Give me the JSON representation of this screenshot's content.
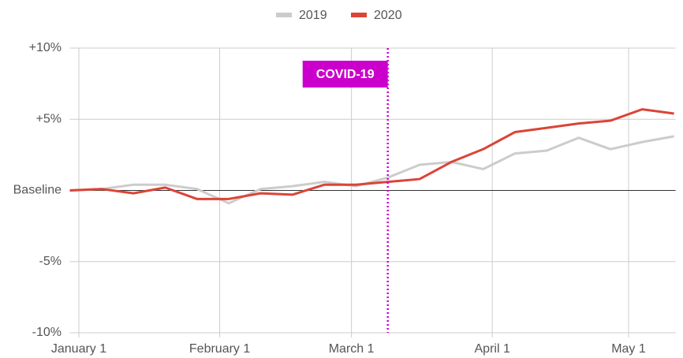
{
  "chart_data": {
    "type": "line",
    "x": [
      -2,
      5,
      12,
      19,
      26,
      33,
      40,
      47,
      54,
      61,
      68,
      75,
      82,
      89,
      96,
      103,
      110,
      117,
      124,
      131
    ],
    "series": [
      {
        "name": "2019",
        "color": "#cccccc",
        "values": [
          0,
          0.1,
          0.4,
          0.4,
          0.1,
          -0.9,
          0.1,
          0.3,
          0.6,
          0.3,
          0.9,
          1.8,
          2.0,
          1.5,
          2.6,
          2.8,
          3.7,
          2.9,
          3.4,
          3.8
        ]
      },
      {
        "name": "2020",
        "color": "#db4437",
        "values": [
          0,
          0.1,
          -0.2,
          0.2,
          -0.6,
          -0.6,
          -0.2,
          -0.3,
          0.4,
          0.4,
          0.6,
          0.8,
          2.0,
          2.9,
          4.1,
          4.4,
          4.7,
          4.9,
          5.7,
          5.4
        ]
      }
    ],
    "xlim": [
      -2,
      131
    ],
    "xticks": [
      {
        "value": 0,
        "label": "January 1"
      },
      {
        "value": 31,
        "label": "February 1"
      },
      {
        "value": 60,
        "label": "March 1"
      },
      {
        "value": 91,
        "label": "April 1"
      },
      {
        "value": 121,
        "label": "May 1"
      }
    ],
    "ylim": [
      -10,
      10
    ],
    "yticks": [
      {
        "value": -10,
        "label": "-10%"
      },
      {
        "value": -5,
        "label": "-5%"
      },
      {
        "value": 0,
        "label": "Baseline"
      },
      {
        "value": 5,
        "label": "+5%"
      },
      {
        "value": 10,
        "label": "+10%"
      }
    ],
    "grid": true,
    "legend": "top",
    "annotations": [
      {
        "x": 68,
        "label": "COVID-19",
        "color": "#cc00cc"
      }
    ]
  }
}
